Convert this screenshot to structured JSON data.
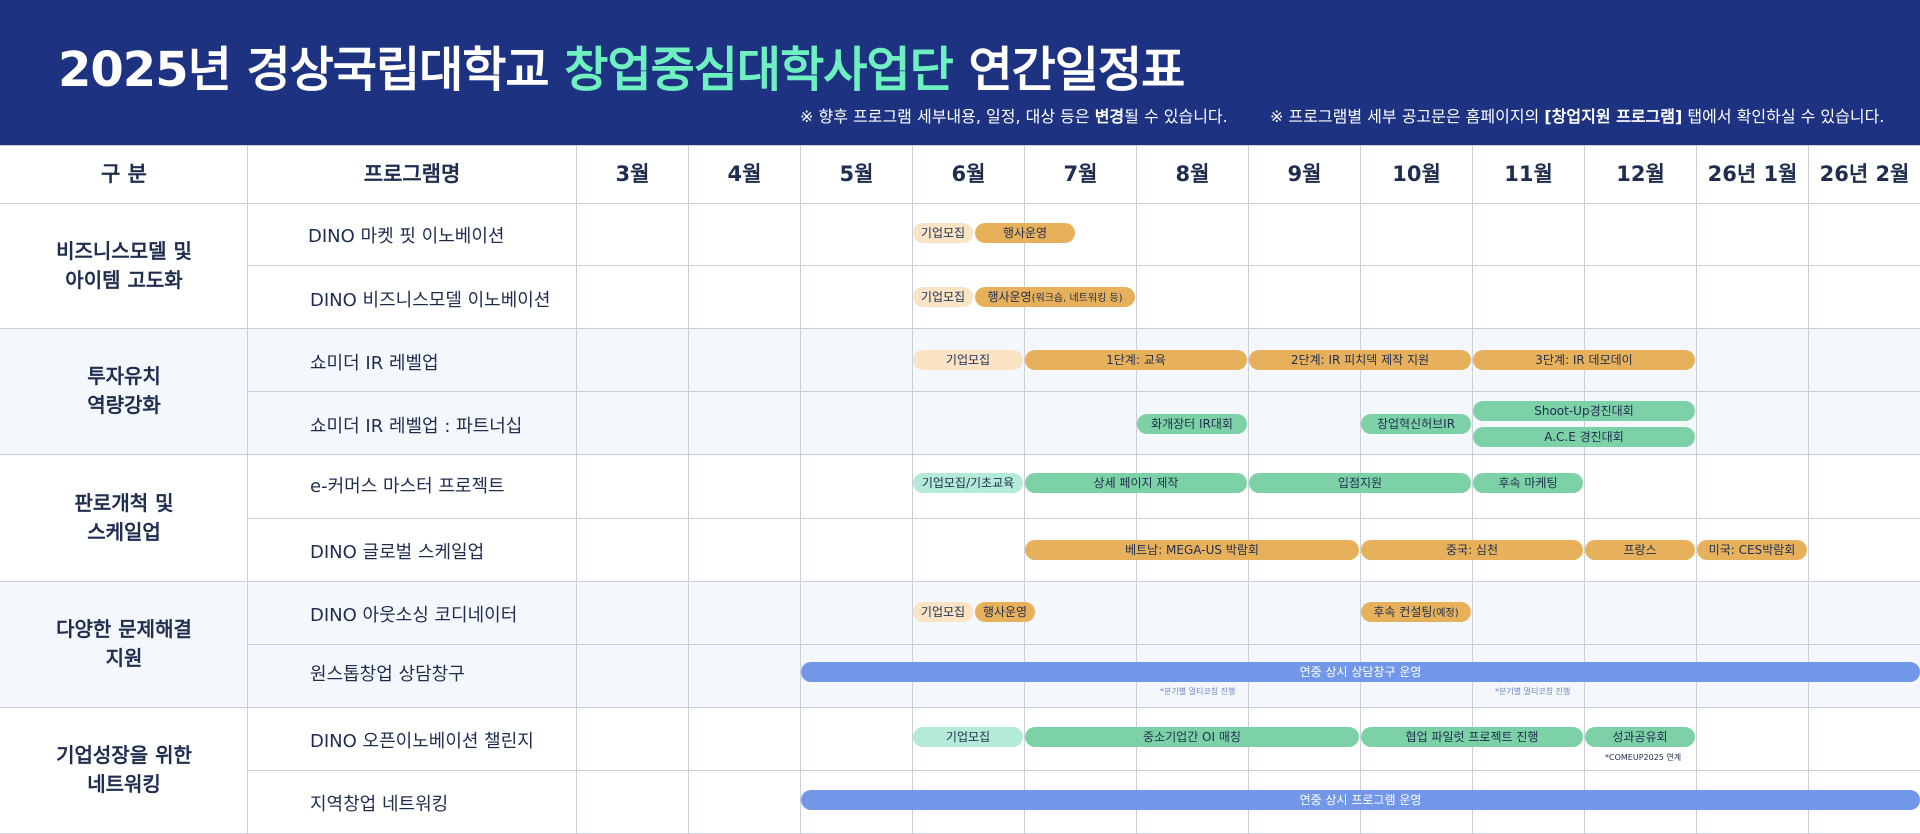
{
  "header": {
    "title_part1": "2025년 경상국립대학교 ",
    "title_accent": "창업중심대학사업단",
    "title_part2": " 연간일정표",
    "note1_a": "※ 향후 프로그램 세부내용, 일정, 대상 등은 ",
    "note1_b": "변경",
    "note1_c": "될 수 있습니다.",
    "note2_a": "※ 프로그램별 세부 공고문은 홈페이지의 ",
    "note2_b": "[창업지원 프로그램]",
    "note2_c": " 탭에서 확인하실 수 있습니다."
  },
  "table": {
    "col_category": "구 분",
    "col_program": "프로그램명",
    "months": [
      "3월",
      "4월",
      "5월",
      "6월",
      "7월",
      "8월",
      "9월",
      "10월",
      "11월",
      "12월",
      "26년 1월",
      "26년 2월"
    ]
  },
  "categories": [
    {
      "line1": "비즈니스모델 및",
      "line2": "아이템 고도화"
    },
    {
      "line1": "투자유치",
      "line2": "역량강화"
    },
    {
      "line1": "판로개척 및",
      "line2": "스케일업"
    },
    {
      "line1": "다양한 문제해결",
      "line2": "지원"
    },
    {
      "line1": "기업성장을 위한",
      "line2": "네트워킹"
    }
  ],
  "programs": [
    "DINO 마켓 핏 이노베이션",
    "DINO 비즈니스모델 이노베이션",
    "쇼미더 IR 레벨업",
    "쇼미더 IR 레벨업 : 파트너십",
    "e-커머스 마스터 프로젝트",
    "DINO 글로벌 스케일업",
    "DINO 아웃소싱 코디네이터",
    "원스톱창업 상담창구",
    "DINO 오픈이노베이션 챌린지",
    "지역창업 네트워킹"
  ],
  "bars": {
    "r1_recruit": "기업모집",
    "r1_run": "행사운영",
    "r2_recruit": "기업모집",
    "r2_run": "행사운영",
    "r2_run_small": "(워크숍, 네트워킹 등)",
    "r3_recruit": "기업모집",
    "r3_s1": "1단계: 교육",
    "r3_s2": "2단계: IR 피치덱 제작 지원",
    "r3_s3": "3단계: IR 데모데이",
    "r4_a": "화개장터 IR대회",
    "r4_b": "창업혁신허브IR",
    "r4_c": "Shoot-Up경진대회",
    "r4_d": "A.C.E 경진대회",
    "r5_a": "기업모집/기초교육",
    "r5_b": "상세 페이지 제작",
    "r5_c": "입점지원",
    "r5_d": "후속 마케팅",
    "r6_a": "베트남: MEGA-US 박람회",
    "r6_b": "중국: 심천",
    "r6_c": "프랑스",
    "r6_d": "미국: CES박람회",
    "r7_recruit": "기업모집",
    "r7_run": "행사운영",
    "r7_follow": "후속 컨설팅",
    "r7_follow_small": "(예정)",
    "r8_main": "연중 상시 상담창구 운영",
    "r8_fn1": "*분기별 멀티코칭 진행",
    "r8_fn2": "*분기별 멀티코칭 진행",
    "r9_a": "기업모집",
    "r9_b": "중소기업간 OI 매칭",
    "r9_c": "협업 파일럿 프로젝트 진행",
    "r9_d": "성과공유회",
    "r9_fn": "*COMEUP2025 연계",
    "r10_main": "연중 상시 프로그램 운영"
  },
  "colors": {
    "header_bg": "#1e3282",
    "accent_text": "#6ff0c0",
    "orange_bar": "#e7b15c",
    "peach_bar": "#fbe4c6",
    "green_bar": "#7dd1a7",
    "mint_bar": "#b3ebd8",
    "blue_bar": "#7297e8"
  }
}
